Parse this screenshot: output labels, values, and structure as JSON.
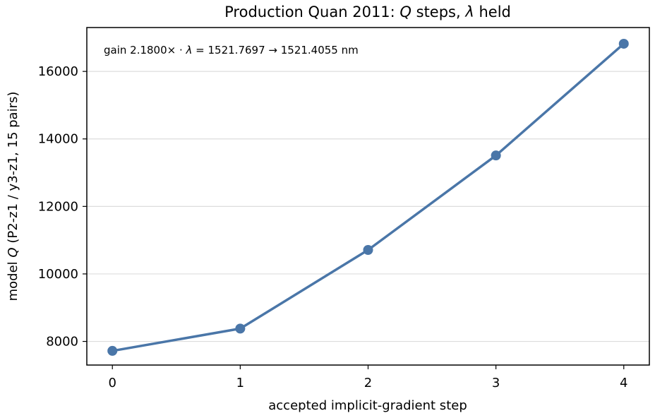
{
  "chart_data": {
    "type": "line",
    "title_parts": [
      {
        "text": "Production Quan 2011: ",
        "italic": false
      },
      {
        "text": "Q",
        "italic": true
      },
      {
        "text": " steps, ",
        "italic": false
      },
      {
        "text": "λ",
        "italic": true
      },
      {
        "text": " held",
        "italic": false
      }
    ],
    "xlabel": "accepted implicit-gradient step",
    "ylabel_parts": [
      {
        "text": "model ",
        "italic": false
      },
      {
        "text": "Q",
        "italic": true
      },
      {
        "text": " (P2-z1 / y3-z1, 15 pairs)",
        "italic": false
      }
    ],
    "annotation_parts": [
      {
        "text": "gain 2.1800× · ",
        "italic": false
      },
      {
        "text": "λ",
        "italic": true
      },
      {
        "text": " = 1521.7697 → 1521.4055 nm",
        "italic": false
      }
    ],
    "x": [
      0,
      1,
      2,
      3,
      4
    ],
    "y": [
      7720,
      8380,
      10710,
      13510,
      16820
    ],
    "xlim": [
      -0.2,
      4.2
    ],
    "ylim": [
      7300,
      17300
    ],
    "xticks": [
      "0",
      "1",
      "2",
      "3",
      "4"
    ],
    "yticks": [
      8000,
      10000,
      12000,
      14000,
      16000
    ],
    "ytick_labels": [
      "8000",
      "10000",
      "12000",
      "14000",
      "16000"
    ],
    "grid": "horizontal",
    "line_color": "#4a76a8",
    "grid_color": "#dddddd"
  }
}
